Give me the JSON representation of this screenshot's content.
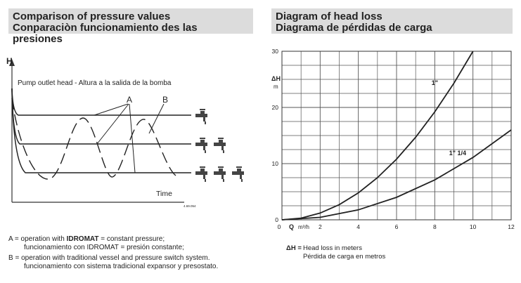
{
  "left": {
    "title_en": "Comparison of pressure values",
    "title_es": "Conparaciòn funcionamiento des las presiones",
    "axis_h": "H",
    "pump_label": "Pump outlet head - Altura a la salida de la bomba",
    "label_a": "A",
    "label_b": "B",
    "axis_time": "Time",
    "ref_code": "4.69.054",
    "note_a_prefix": "A = operation with ",
    "note_a_bold": "IDROMAT",
    "note_a_rest": " = constant pressure;",
    "note_a_line2": "funcionamiento con IDROMAT = presión constante;",
    "note_b_line1": "B = operation with traditional vessel and pressure switch system.",
    "note_b_line2": "funcionamiento con sistema tradicional expansor y presostato.",
    "tap_icons": [
      "tap-icon",
      "tap-icon",
      "tap-icon"
    ]
  },
  "right": {
    "title_en": "Diagram of head loss",
    "title_es": "Diagrama de pérdidas de carga",
    "dh_key": "ΔH =",
    "dh_en": "Head loss in meters",
    "dh_es": "Pérdida de carga en metros"
  },
  "chart_data": {
    "type": "line",
    "ylabel": "ΔH",
    "ylabel_unit": "m",
    "xlabel": "Q",
    "xlabel_unit": "m³/h",
    "xlim": [
      0,
      12
    ],
    "ylim": [
      0,
      30
    ],
    "x_ticks": [
      0,
      2,
      4,
      6,
      8,
      10,
      12
    ],
    "y_ticks": [
      0,
      10,
      20,
      30
    ],
    "grid": true,
    "series": [
      {
        "name": "1\"",
        "x": [
          0,
          1,
          2,
          3,
          4,
          5,
          6,
          7,
          8,
          9,
          10
        ],
        "y": [
          0,
          0.3,
          1.2,
          2.7,
          4.8,
          7.5,
          10.8,
          14.7,
          19.2,
          24.3,
          30
        ]
      },
      {
        "name": "1\" 1/4",
        "x": [
          0,
          2,
          4,
          6,
          8,
          10,
          12
        ],
        "y": [
          0,
          0.44,
          1.78,
          4.0,
          7.1,
          11.1,
          16.0
        ]
      }
    ]
  }
}
